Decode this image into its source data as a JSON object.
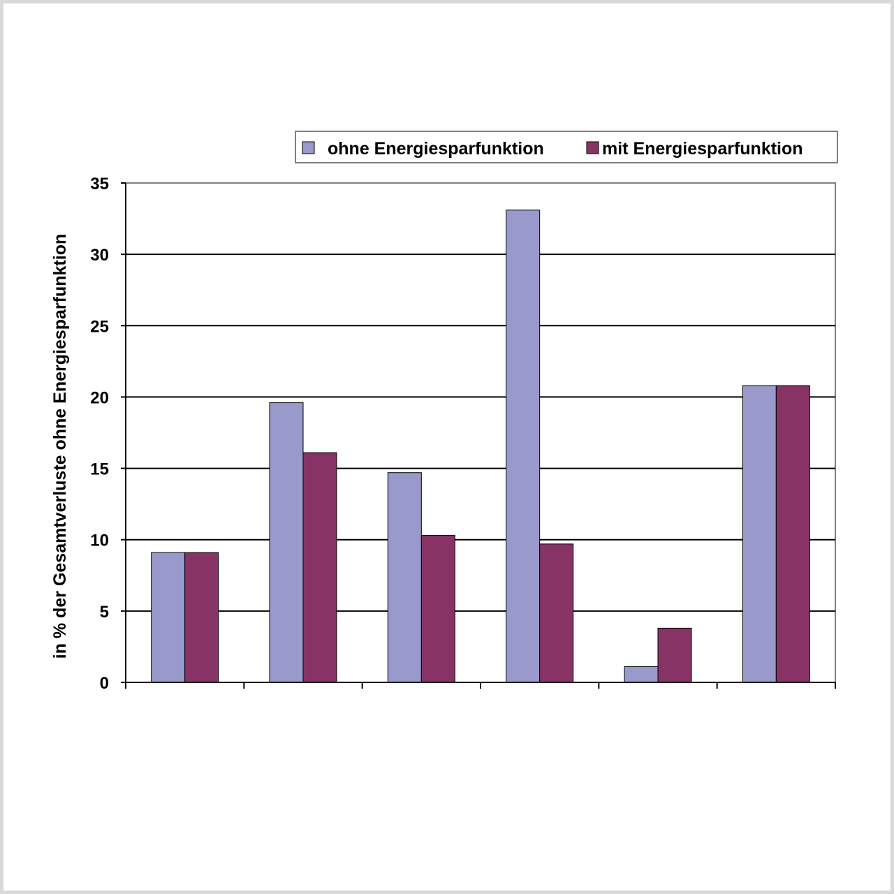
{
  "chart_data": {
    "type": "bar",
    "categories": [
      "",
      "",
      "",
      "",
      "",
      ""
    ],
    "series": [
      {
        "name": "ohne Energiesparfunktion",
        "color": "#9999cc",
        "values": [
          9.1,
          19.6,
          14.7,
          33.1,
          1.1,
          20.8
        ]
      },
      {
        "name": "mit Energiesparfunktion",
        "color": "#883366",
        "values": [
          9.1,
          16.1,
          10.3,
          9.7,
          3.8,
          20.8
        ]
      }
    ],
    "title": "",
    "xlabel": "",
    "ylabel": "in % der Gesamtverluste ohne Energiesparfunktion",
    "ylim": [
      0,
      35
    ],
    "yticks": [
      0,
      5,
      10,
      15,
      20,
      25,
      30,
      35
    ],
    "grid": true,
    "legend_position": "top-right"
  }
}
